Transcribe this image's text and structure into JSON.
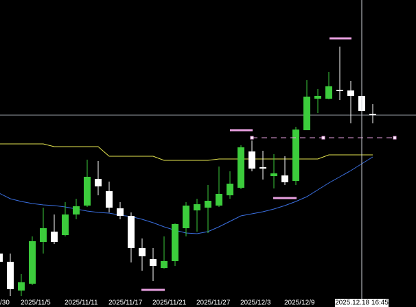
{
  "chart_data": {
    "type": "candlestick",
    "categories": [
      "/30",
      null,
      null,
      null,
      "2025/11/5",
      null,
      null,
      null,
      "2025/11/11",
      null,
      null,
      null,
      "2025/11/17",
      null,
      null,
      null,
      "2025/11/21",
      null,
      null,
      null,
      "2025/11/27",
      null,
      null,
      null,
      "2025/12/3",
      null,
      null,
      null,
      "2025/12/9",
      null,
      null,
      null,
      null,
      null,
      null,
      null
    ],
    "open": [
      null,
      78,
      66,
      24,
      34,
      95,
      110,
      105,
      135,
      148,
      187,
      169,
      144,
      133,
      86,
      70,
      57,
      67,
      115,
      141,
      145,
      148,
      163,
      174,
      227,
      204,
      191,
      192,
      184,
      258,
      304,
      304,
      317,
      316,
      308,
      282
    ],
    "high": [
      null,
      80,
      78,
      48,
      103,
      145,
      135,
      153,
      158,
      215,
      213,
      183,
      153,
      138,
      100,
      86,
      103,
      122,
      153,
      158,
      178,
      205,
      198,
      236,
      243,
      228,
      223,
      220,
      263,
      331,
      318,
      343,
      380,
      330,
      328,
      296
    ],
    "low": [
      null,
      64,
      16,
      16,
      32,
      78,
      92,
      103,
      128,
      146,
      163,
      138,
      128,
      65,
      53,
      38,
      56,
      60,
      103,
      110,
      108,
      146,
      158,
      172,
      198,
      186,
      173,
      178,
      178,
      258,
      283,
      303,
      302,
      268,
      283,
      268
    ],
    "close": [
      null,
      66,
      26,
      36,
      96,
      115,
      95,
      135,
      147,
      190,
      176,
      145,
      133,
      86,
      74,
      60,
      67,
      121,
      148,
      150,
      155,
      165,
      180,
      233,
      202,
      202,
      195,
      182,
      259,
      307,
      308,
      322,
      315,
      308,
      286,
      280
    ],
    "up_color": "#3ccc3c",
    "down_color": "#ffffff",
    "series": [
      {
        "color": "#e6e650",
        "values": [
          238,
          238,
          238,
          238,
          238,
          238,
          234,
          234,
          234,
          234,
          234,
          220,
          220,
          220,
          220,
          220,
          214,
          214,
          214,
          214,
          214,
          216,
          216,
          216,
          216,
          216,
          216,
          216,
          216,
          216,
          216,
          222,
          222,
          222,
          222,
          222
        ]
      },
      {
        "color": "#3a6fe0",
        "values": [
          168,
          166,
          158,
          154,
          151,
          149,
          148,
          146,
          143,
          140,
          138,
          137,
          134,
          132,
          128,
          123,
          117,
          112,
          108,
          107,
          110,
          117,
          125,
          133,
          136,
          139,
          143,
          148,
          154,
          161,
          171,
          181,
          190,
          199,
          209,
          219
        ]
      }
    ],
    "levels": [
      392,
      258,
      159,
      25
    ],
    "level_color": "#e8a0e0",
    "dashed_level": 247,
    "crosshair": {
      "value": 280,
      "label": "2025.12.18 16:45"
    },
    "ylim": [
      0,
      448
    ]
  }
}
